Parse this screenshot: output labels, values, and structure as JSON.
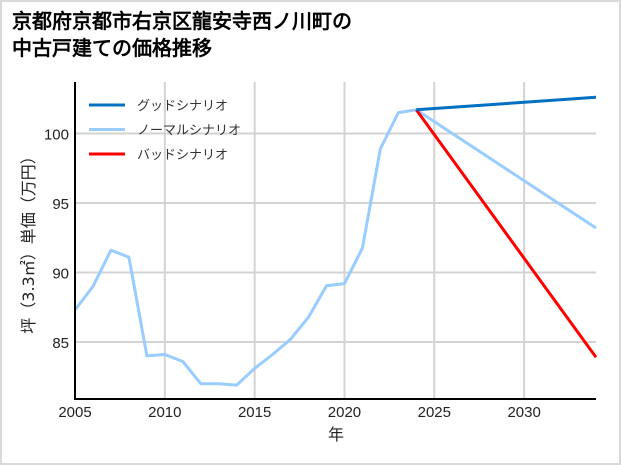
{
  "chart_data": {
    "type": "line",
    "title": "京都府京都市右京区龍安寺西ノ川町の中古戸建ての価格推移",
    "title_lines": [
      "京都府京都市右京区龍安寺西ノ川町の",
      "中古戸建ての価格推移"
    ],
    "xlabel": "年",
    "ylabel": "坪（3.3㎡）単価（万円）",
    "xlim": [
      2005,
      2034
    ],
    "ylim": [
      80.9,
      103.7
    ],
    "x_ticks": [
      2005,
      2010,
      2015,
      2020,
      2025,
      2030
    ],
    "y_ticks": [
      85,
      90,
      95,
      100
    ],
    "grid": true,
    "legend_position": "upper left",
    "series": [
      {
        "name": "グッドシナリオ",
        "color": "#0070c0",
        "x": [
          2024,
          2034
        ],
        "values": [
          101.7,
          102.6
        ]
      },
      {
        "name": "ノーマルシナリオ",
        "color": "#99ccff",
        "x": [
          2005,
          2006,
          2007,
          2008,
          2009,
          2010,
          2011,
          2012,
          2013,
          2014,
          2015,
          2016,
          2017,
          2018,
          2019,
          2020,
          2021,
          2022,
          2023,
          2024,
          2034
        ],
        "values": [
          87.3,
          89.0,
          91.6,
          91.1,
          84.0,
          84.1,
          83.6,
          82.0,
          82.0,
          81.9,
          83.1,
          84.1,
          85.2,
          86.8,
          89.05,
          89.2,
          91.75,
          98.9,
          101.5,
          101.7,
          93.2
        ]
      },
      {
        "name": "バッドシナリオ",
        "color": "#ff0000",
        "x": [
          2024,
          2034
        ],
        "values": [
          101.7,
          83.9
        ]
      }
    ]
  }
}
